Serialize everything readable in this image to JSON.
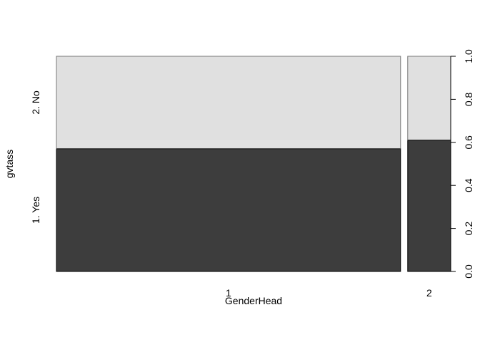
{
  "chart_data": {
    "type": "spineplot",
    "xlabel": "GenderHead",
    "ylabel": "gvtass",
    "x_categories": [
      "1",
      "2"
    ],
    "x_widths": [
      0.8889,
      0.1111
    ],
    "y_categories": [
      "1. Yes",
      "2. No"
    ],
    "fractions": [
      {
        "x": "1",
        "yes": 0.57,
        "no": 0.43
      },
      {
        "x": "2",
        "yes": 0.61,
        "no": 0.39
      }
    ],
    "right_axis": {
      "ticks": [
        "0.0",
        "0.2",
        "0.4",
        "0.6",
        "0.8",
        "1.0"
      ],
      "range": [
        0,
        1
      ]
    },
    "colors": {
      "yes": "#3d3d3d",
      "no": "#e0e0e0",
      "border": "#000000"
    }
  }
}
